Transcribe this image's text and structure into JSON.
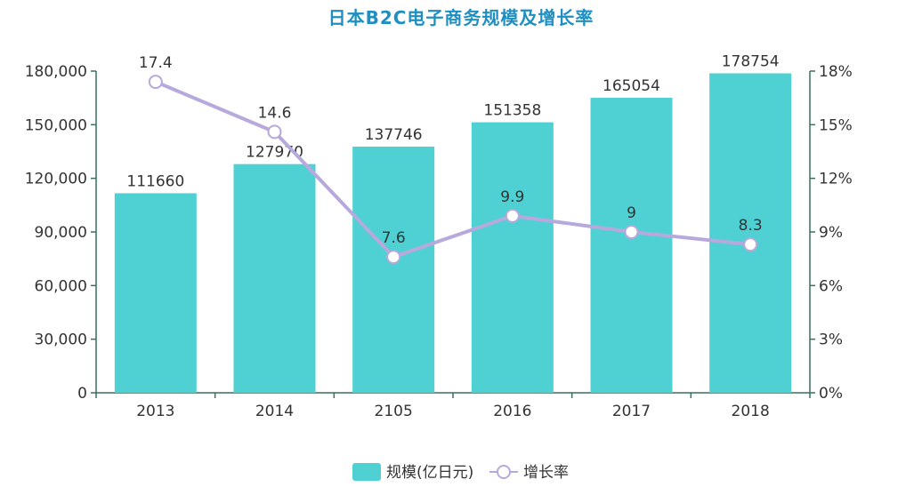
{
  "chart_data": {
    "type": "bar",
    "title": "日本B2C电子商务规模及增长率",
    "categories": [
      "2013",
      "2014",
      "2105",
      "2016",
      "2017",
      "2018"
    ],
    "series": [
      {
        "name": "规模(亿日元)",
        "type": "bar",
        "axis": "left",
        "values": [
          111660,
          127970,
          137746,
          151358,
          165054,
          178754
        ],
        "labels": [
          "111660",
          "127970",
          "137746",
          "151358",
          "165054",
          "178754"
        ],
        "color": "#4fd1d3"
      },
      {
        "name": "增长率",
        "type": "line",
        "axis": "right",
        "values": [
          17.4,
          14.6,
          7.6,
          9.9,
          9,
          8.3
        ],
        "labels": [
          "17.4",
          "14.6",
          "7.6",
          "9.9",
          "9",
          "8.3"
        ],
        "color": "#b8a9dc"
      }
    ],
    "y_left": {
      "range": [
        0,
        180000
      ],
      "ticks": [
        "0",
        "30,000",
        "60,000",
        "90,000",
        "120,000",
        "150,000",
        "180,000"
      ]
    },
    "y_right": {
      "range": [
        0,
        18
      ],
      "ticks": [
        "0%",
        "3%",
        "6%",
        "9%",
        "12%",
        "15%",
        "18%"
      ]
    },
    "grid": false,
    "legend": "bottom-center",
    "axis_color": "#3a6f5f"
  }
}
